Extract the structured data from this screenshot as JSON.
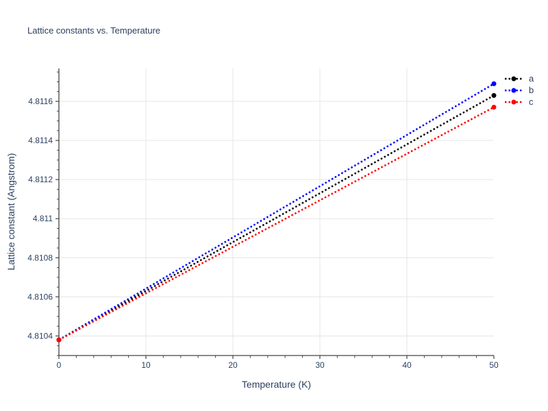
{
  "chart_data": {
    "type": "line",
    "title": "Lattice constants vs. Temperature",
    "xlabel": "Temperature (K)",
    "ylabel": "Lattice constant (Angstrom)",
    "xlim": [
      0,
      50
    ],
    "ylim": [
      4.8103,
      4.811768
    ],
    "x_major_ticks": [
      0,
      10,
      20,
      30,
      40,
      50
    ],
    "x_tick_labels": [
      "0",
      "10",
      "20",
      "30",
      "40",
      "50"
    ],
    "x_minor_step": 2,
    "y_major_ticks": [
      4.8104,
      4.8106,
      4.8108,
      4.811,
      4.8112,
      4.8114,
      4.8116
    ],
    "y_tick_labels": [
      "4.8104",
      "4.8106",
      "4.8108",
      "4.811",
      "4.8112",
      "4.8114",
      "4.8116"
    ],
    "y_minor_step": 5e-05,
    "grid": true,
    "line_style": "dotted",
    "markers": "endpoints-only",
    "legend_position": "top-right-outside",
    "series": [
      {
        "name": "a",
        "color": "#000000",
        "x": [
          0,
          50
        ],
        "y": [
          4.81038,
          4.81163
        ]
      },
      {
        "name": "b",
        "color": "#0000ff",
        "x": [
          0,
          50
        ],
        "y": [
          4.81038,
          4.81169
        ]
      },
      {
        "name": "c",
        "color": "#ff0000",
        "x": [
          0,
          50
        ],
        "y": [
          4.81038,
          4.81157
        ]
      }
    ],
    "colors": {
      "font": "#2a3f5f",
      "grid": "#e5e5e5",
      "axis": "#444444",
      "background": "#ffffff"
    }
  }
}
